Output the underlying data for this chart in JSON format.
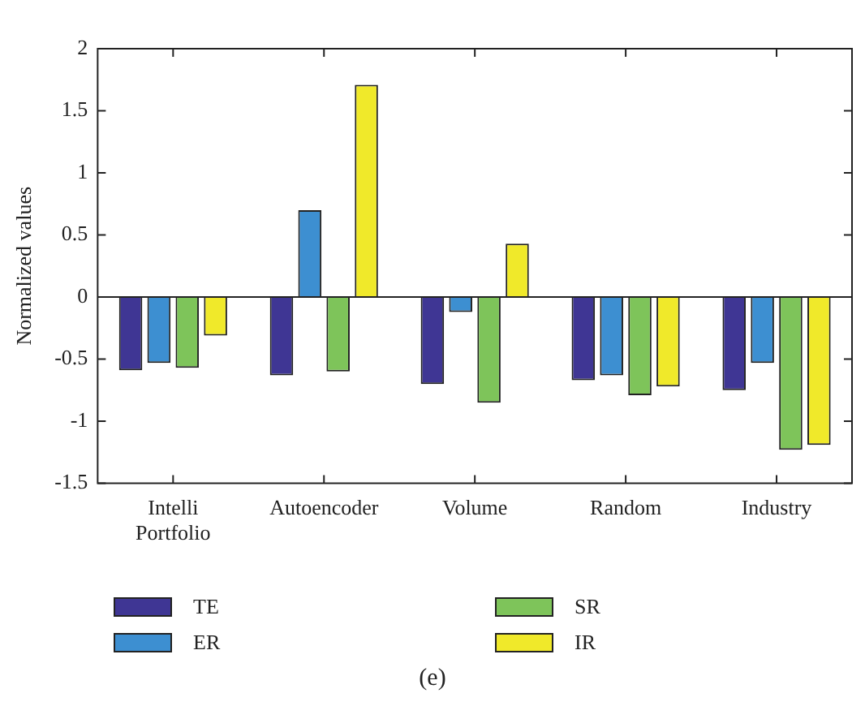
{
  "chart_data": {
    "type": "bar",
    "categories": [
      "Intelli Portfolio",
      "Autoencoder",
      "Volume",
      "Random",
      "Industry"
    ],
    "ylabel": "Normalized values",
    "ylim": [
      -1.5,
      2
    ],
    "yticks": [
      -1.5,
      -1,
      -0.5,
      0,
      0.5,
      1,
      1.5,
      2
    ],
    "series": [
      {
        "name": "TE",
        "color": "#3f3694",
        "values": [
          -0.59,
          -0.63,
          -0.7,
          -0.67,
          -0.75
        ]
      },
      {
        "name": "ER",
        "color": "#3d8fd1",
        "values": [
          -0.53,
          0.7,
          -0.12,
          -0.63,
          -0.53
        ]
      },
      {
        "name": "SR",
        "color": "#7ec45a",
        "values": [
          -0.57,
          -0.6,
          -0.85,
          -0.79,
          -1.23
        ]
      },
      {
        "name": "IR",
        "color": "#f0e92a",
        "values": [
          -0.31,
          1.71,
          0.43,
          -0.72,
          -1.19
        ]
      }
    ],
    "ref_lines": [
      {
        "axis": "y",
        "value": 0
      }
    ],
    "grid": false,
    "legend": "bottom",
    "annotations": [
      "(e)"
    ]
  }
}
